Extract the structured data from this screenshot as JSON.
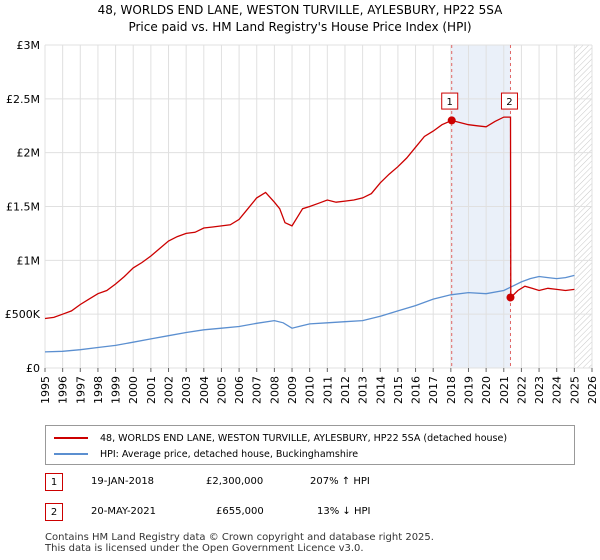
{
  "chart_data": {
    "type": "line",
    "title": "48, WORLDS END LANE, WESTON TURVILLE, AYLESBURY, HP22 5SA",
    "subtitle": "Price paid vs. HM Land Registry's House Price Index (HPI)",
    "xlim": [
      1995,
      2026
    ],
    "ylim": [
      0,
      3000000
    ],
    "x_ticks": [
      "1995",
      "1996",
      "1997",
      "1998",
      "1999",
      "2000",
      "2001",
      "2002",
      "2003",
      "2004",
      "2005",
      "2006",
      "2007",
      "2008",
      "2009",
      "2010",
      "2011",
      "2012",
      "2013",
      "2014",
      "2015",
      "2016",
      "2017",
      "2018",
      "2019",
      "2020",
      "2021",
      "2022",
      "2023",
      "2024",
      "2025",
      "2026"
    ],
    "y_ticks": [
      {
        "value": 0,
        "label": "£0"
      },
      {
        "value": 500000,
        "label": "£500K"
      },
      {
        "value": 1000000,
        "label": "£1M"
      },
      {
        "value": 1500000,
        "label": "£1.5M"
      },
      {
        "value": 2000000,
        "label": "£2M"
      },
      {
        "value": 2500000,
        "label": "£2.5M"
      },
      {
        "value": 3000000,
        "label": "£3M"
      }
    ],
    "grid": true,
    "future_hatch_from": 2025.0,
    "series": [
      {
        "name": "48, WORLDS END LANE, WESTON TURVILLE, AYLESBURY, HP22 5SA (detached house)",
        "color": "#cc0000",
        "x": [
          1995.0,
          1995.5,
          1996.0,
          1996.5,
          1997.0,
          1997.5,
          1998.0,
          1998.5,
          1999.0,
          1999.5,
          2000.0,
          2000.5,
          2001.0,
          2001.5,
          2002.0,
          2002.5,
          2003.0,
          2003.5,
          2004.0,
          2004.5,
          2005.0,
          2005.5,
          2006.0,
          2006.5,
          2007.0,
          2007.5,
          2008.0,
          2008.3,
          2008.6,
          2009.0,
          2009.3,
          2009.6,
          2010.0,
          2010.5,
          2011.0,
          2011.5,
          2012.0,
          2012.5,
          2013.0,
          2013.5,
          2014.0,
          2014.5,
          2015.0,
          2015.5,
          2016.0,
          2016.5,
          2017.0,
          2017.5,
          2018.05,
          2018.5,
          2019.0,
          2019.5,
          2020.0,
          2020.5,
          2021.0,
          2021.38,
          2021.4,
          2021.8,
          2022.2,
          2022.6,
          2023.0,
          2023.5,
          2024.0,
          2024.5,
          2025.0
        ],
        "values": [
          460000,
          470000,
          500000,
          530000,
          590000,
          640000,
          690000,
          720000,
          780000,
          850000,
          930000,
          980000,
          1040000,
          1110000,
          1180000,
          1220000,
          1250000,
          1260000,
          1300000,
          1310000,
          1320000,
          1330000,
          1380000,
          1480000,
          1580000,
          1630000,
          1540000,
          1480000,
          1350000,
          1320000,
          1400000,
          1480000,
          1500000,
          1530000,
          1560000,
          1540000,
          1550000,
          1560000,
          1580000,
          1620000,
          1720000,
          1800000,
          1870000,
          1950000,
          2050000,
          2150000,
          2200000,
          2260000,
          2300000,
          2280000,
          2260000,
          2250000,
          2240000,
          2290000,
          2330000,
          2330000,
          655000,
          720000,
          760000,
          740000,
          720000,
          740000,
          730000,
          720000,
          730000
        ]
      },
      {
        "name": "HPI: Average price, detached house, Buckinghamshire",
        "color": "#5b8fd0",
        "x": [
          1995.0,
          1996.0,
          1997.0,
          1998.0,
          1999.0,
          2000.0,
          2001.0,
          2002.0,
          2003.0,
          2004.0,
          2005.0,
          2006.0,
          2007.0,
          2008.0,
          2008.5,
          2009.0,
          2009.5,
          2010.0,
          2011.0,
          2012.0,
          2013.0,
          2014.0,
          2015.0,
          2016.0,
          2017.0,
          2018.0,
          2019.0,
          2020.0,
          2021.0,
          2021.5,
          2022.0,
          2022.5,
          2023.0,
          2023.5,
          2024.0,
          2024.5,
          2025.0
        ],
        "values": [
          150000,
          155000,
          170000,
          190000,
          210000,
          240000,
          270000,
          300000,
          330000,
          355000,
          370000,
          385000,
          415000,
          440000,
          420000,
          370000,
          390000,
          410000,
          420000,
          430000,
          440000,
          480000,
          530000,
          580000,
          640000,
          680000,
          700000,
          690000,
          720000,
          760000,
          800000,
          830000,
          850000,
          840000,
          830000,
          840000,
          860000
        ]
      }
    ],
    "sales": [
      {
        "marker": "1",
        "x": 2018.05,
        "value": 2300000,
        "date": "19-JAN-2018",
        "price": "£2,300,000",
        "hpi_change": "207% ↑ HPI"
      },
      {
        "marker": "2",
        "x": 2021.38,
        "value": 655000,
        "date": "20-MAY-2021",
        "price": "£655,000",
        "hpi_change": "13% ↓ HPI"
      }
    ],
    "legend": [
      {
        "label": "48, WORLDS END LANE, WESTON TURVILLE, AYLESBURY, HP22 5SA (detached house)",
        "color": "#cc0000"
      },
      {
        "label": "HPI: Average price, detached house, Buckinghamshire",
        "color": "#5b8fd0"
      }
    ],
    "footer": [
      "Contains HM Land Registry data © Crown copyright and database right 2025.",
      "This data is licensed under the Open Government Licence v3.0."
    ]
  }
}
